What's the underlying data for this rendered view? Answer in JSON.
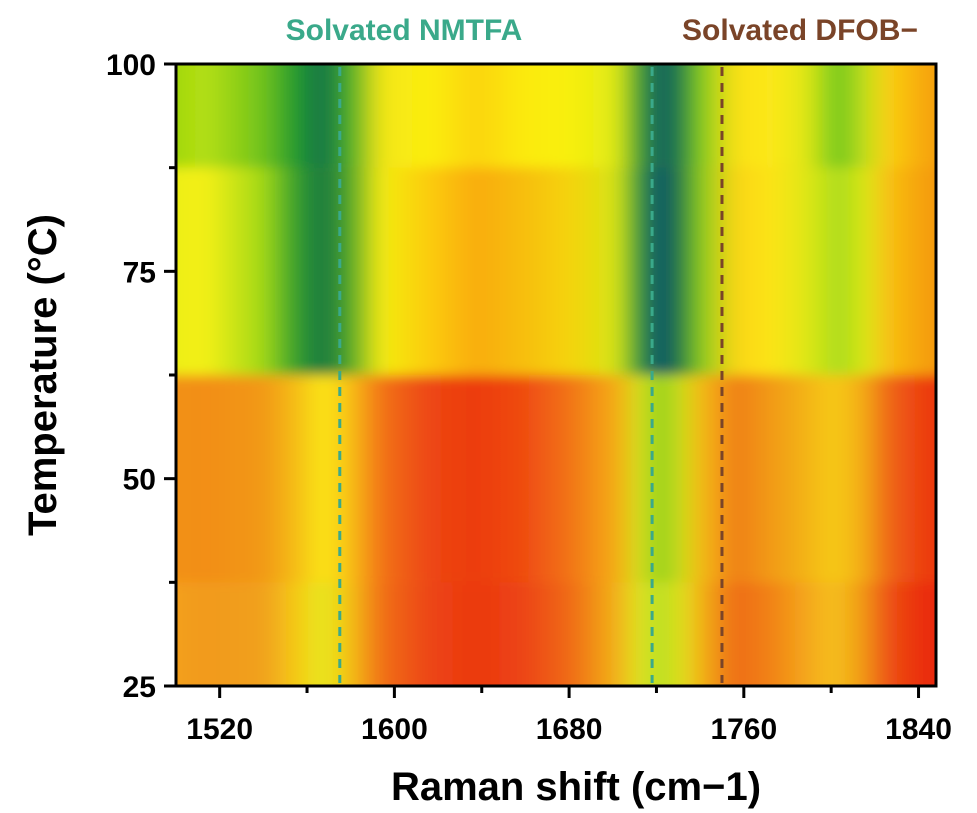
{
  "chart_data": {
    "type": "heatmap",
    "xlabel": "Raman shift (cm−1)",
    "ylabel": "Temperature (°C)",
    "xlim": [
      1500,
      1848
    ],
    "ylim": [
      25,
      100
    ],
    "x_ticks": [
      "1520",
      "1600",
      "1680",
      "1760",
      "1840"
    ],
    "x_tick_values": [
      1520,
      1600,
      1680,
      1760,
      1840
    ],
    "y_ticks": [
      "25",
      "50",
      "75",
      "100"
    ],
    "y_tick_values": [
      25,
      50,
      75,
      100
    ],
    "rows_temperature": [
      100,
      75,
      50,
      25
    ],
    "columns_raman_shift": [
      1500,
      1525,
      1550,
      1565,
      1575,
      1585,
      1600,
      1620,
      1640,
      1660,
      1680,
      1700,
      1710,
      1718,
      1726,
      1735,
      1750,
      1765,
      1780,
      1790,
      1795,
      1805,
      1815,
      1830,
      1848
    ],
    "intensity_colors": [
      [
        "#8ecf0f",
        "#b6e012",
        "#6fc21c",
        "#1c9631",
        "#14704a",
        "#3aa82b",
        "#f4e616",
        "#fbee0f",
        "#fbd40e",
        "#fbea10",
        "#f8f010",
        "#dfe913",
        "#2f9a33",
        "#125c63",
        "#1b7a48",
        "#7fcb1e",
        "#fae014",
        "#fde81b",
        "#e2e713",
        "#8bd21c",
        "#74c51f",
        "#c2e11a",
        "#fbd012",
        "#f7a80f",
        "#f49112"
      ],
      [
        "#e6ee16",
        "#f5f018",
        "#a0d817",
        "#2c9a2f",
        "#1a7642",
        "#3fa02b",
        "#f5ec12",
        "#fbcc0e",
        "#f9ac0c",
        "#f7be0e",
        "#f5d40f",
        "#d6e513",
        "#24923b",
        "#0f4e70",
        "#1a7743",
        "#86cc1e",
        "#fad514",
        "#fde418",
        "#e0e715",
        "#b9e01a",
        "#a8db1b",
        "#dce816",
        "#f9c012",
        "#f5a00f",
        "#f38c13"
      ],
      [
        "#f2941a",
        "#f38e17",
        "#f29818",
        "#f5c116",
        "#fbe817",
        "#f8c713",
        "#f27214",
        "#ed4612",
        "#ec3c10",
        "#ef4a11",
        "#f27415",
        "#f5ae16",
        "#d2e31c",
        "#8fcd1b",
        "#c7df1a",
        "#f4bd16",
        "#f07e14",
        "#f29a17",
        "#f3b317",
        "#f6c818",
        "#f5c617",
        "#f3a816",
        "#ef6613",
        "#ec3d11",
        "#ea2e10"
      ],
      [
        "#f4a51d",
        "#f29a1c",
        "#f1a01c",
        "#f5cd18",
        "#e6ea1c",
        "#f4c816",
        "#f16f15",
        "#ec4512",
        "#eb3811",
        "#ec4412",
        "#f06a16",
        "#f3b31a",
        "#dde621",
        "#b4dd21",
        "#dce41e",
        "#f3b518",
        "#ee6b14",
        "#f28216",
        "#f4a61b",
        "#f5bd1a",
        "#f4bb1a",
        "#f19417",
        "#ed5012",
        "#ea2c10",
        "#e92610"
      ]
    ],
    "annotations": [
      {
        "text": "Solvated NMTFA",
        "color": "#3aa98a",
        "line_style": "dashed",
        "x_values": [
          1575,
          1718
        ]
      },
      {
        "text": "Solvated DFOB−",
        "color": "#7a4428",
        "line_style": "dashed",
        "x_values": [
          1750
        ]
      }
    ],
    "colormap": "green-yellow-red",
    "grid": false,
    "legend": "none"
  }
}
